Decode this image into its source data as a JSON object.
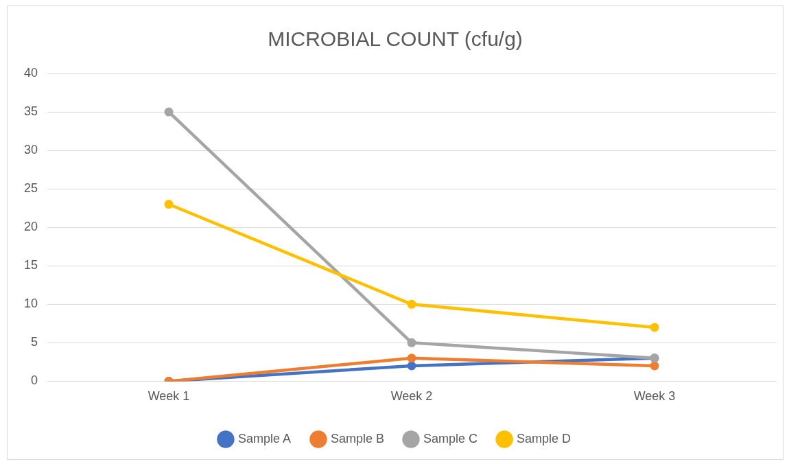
{
  "chart_data": {
    "type": "line",
    "title": "MICROBIAL COUNT (cfu/g)",
    "categories": [
      "Week 1",
      "Week 2",
      "Week 3"
    ],
    "series": [
      {
        "name": "Sample A",
        "color": "#4472c4",
        "values": [
          0,
          2,
          3
        ]
      },
      {
        "name": "Sample B",
        "color": "#ed7d31",
        "values": [
          0,
          3,
          2
        ]
      },
      {
        "name": "Sample C",
        "color": "#a5a5a5",
        "values": [
          35,
          5,
          3
        ]
      },
      {
        "name": "Sample D",
        "color": "#ffc000",
        "values": [
          23,
          10,
          7
        ]
      }
    ],
    "ylim": [
      0,
      40
    ],
    "yticks": [
      0,
      5,
      10,
      15,
      20,
      25,
      30,
      35,
      40
    ],
    "grid": "y",
    "legend": "bottom",
    "marker": "circle",
    "line_style": "solid"
  }
}
